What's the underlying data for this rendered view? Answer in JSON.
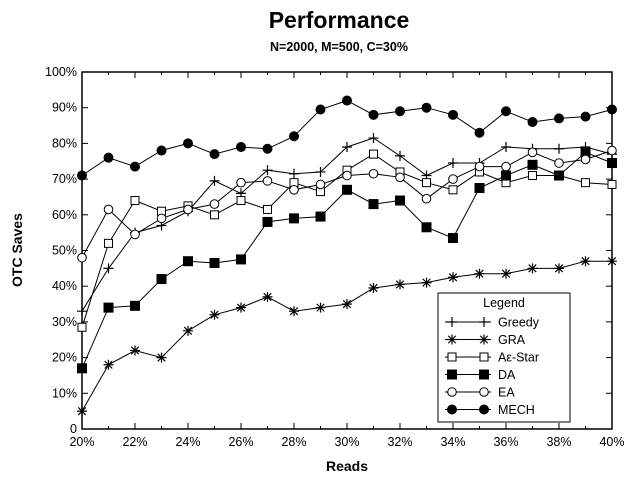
{
  "chart_data": {
    "type": "line",
    "title": "Performance",
    "subtitle": "N=2000, M=500, C=30%",
    "xlabel": "Reads",
    "ylabel": "OTC Saves",
    "x": [
      20,
      21,
      22,
      23,
      24,
      25,
      26,
      27,
      28,
      29,
      30,
      31,
      32,
      33,
      34,
      35,
      36,
      37,
      38,
      39,
      40
    ],
    "x_ticks": [
      "20%",
      "22%",
      "24%",
      "26%",
      "28%",
      "30%",
      "32%",
      "34%",
      "36%",
      "38%",
      "40%"
    ],
    "y_ticks": [
      "0",
      "10%",
      "20%",
      "30%",
      "40%",
      "50%",
      "60%",
      "70%",
      "80%",
      "90%",
      "100%"
    ],
    "xlim": [
      20,
      40
    ],
    "ylim": [
      0,
      100
    ],
    "grid": false,
    "legend": {
      "title": "Legend",
      "position": "bottom-right"
    },
    "series": [
      {
        "name": "Greedy",
        "marker": "plus",
        "values": [
          33,
          45,
          55,
          57,
          61,
          69.5,
          66,
          72.5,
          71.5,
          72,
          79,
          81.5,
          76.5,
          71,
          74.5,
          74.5,
          79,
          78.5,
          78.5,
          79,
          77
        ]
      },
      {
        "name": "GRA",
        "marker": "asterisk",
        "values": [
          5,
          18,
          22,
          20,
          27.5,
          32,
          34,
          37,
          33,
          34,
          35,
          39.5,
          40.5,
          41,
          42.5,
          43.5,
          43.5,
          45,
          45,
          47,
          47
        ]
      },
      {
        "name": "Aε-Star",
        "marker": "open-square",
        "values": [
          28.5,
          52,
          64,
          61,
          62.5,
          60,
          64,
          61.5,
          69,
          66.5,
          72.5,
          77,
          72,
          69,
          67,
          72,
          69,
          71,
          71,
          69,
          68.5
        ]
      },
      {
        "name": "DA",
        "marker": "filled-square",
        "values": [
          17,
          34,
          34.5,
          42,
          47,
          46.5,
          47.5,
          58,
          59,
          59.5,
          67,
          63,
          64,
          56.5,
          53.5,
          67.5,
          71,
          74,
          71,
          77.5,
          74.5
        ]
      },
      {
        "name": "EA",
        "marker": "open-circle",
        "values": [
          48,
          61.5,
          54.5,
          59,
          61.5,
          63,
          69,
          69.5,
          67,
          68.5,
          71,
          71.5,
          70.5,
          64.5,
          70,
          73.5,
          73.5,
          77.5,
          74.5,
          75.5,
          78
        ]
      },
      {
        "name": "MECH",
        "marker": "filled-circle",
        "values": [
          71,
          76,
          73.5,
          78,
          80,
          77,
          79,
          78.5,
          82,
          89.5,
          92,
          88,
          89,
          90,
          88,
          83,
          89,
          86,
          87,
          87.5,
          89.5
        ]
      }
    ]
  }
}
